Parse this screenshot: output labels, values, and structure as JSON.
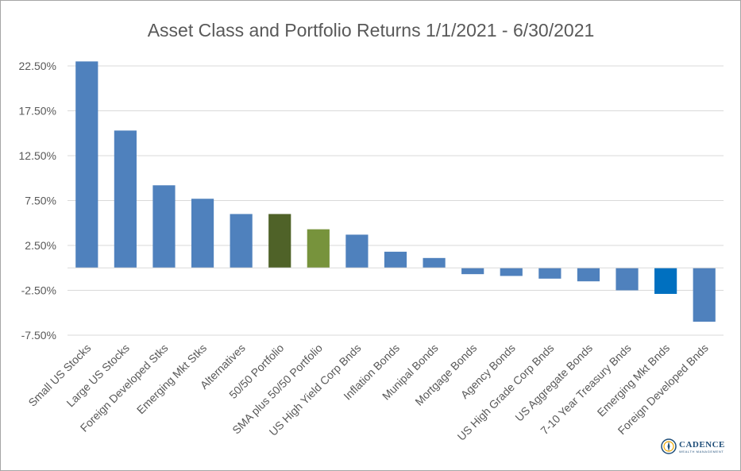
{
  "chart_data": {
    "type": "bar",
    "title": "Asset Class and Portfolio Returns 1/1/2021 - 6/30/2021",
    "xlabel": "",
    "ylabel": "",
    "ylim": [
      -7.5,
      22.5
    ],
    "yticks": [
      "22.50%",
      "17.50%",
      "12.50%",
      "7.50%",
      "2.50%",
      "-2.50%",
      "-7.50%"
    ],
    "ytick_values": [
      22.5,
      17.5,
      12.5,
      7.5,
      2.5,
      -2.5,
      -7.5
    ],
    "grid": true,
    "legend": "none",
    "categories": [
      "Small US Stocks",
      "Large US Stocks",
      "Foreign Developed Stks",
      "Emerging Mkt Stks",
      "Alternatives",
      "50/50 Portfolio",
      "SMA plus 50/50 Portfolio",
      "US High Yield Corp Bnds",
      "Inflation Bonds",
      "Munipal Bonds",
      "Mortgage Bonds",
      "Agency Bonds",
      "US High Grade Corp Bnds",
      "US Aggregate Bonds",
      "7-10 Year Treasury Bnds",
      "Emerging Mkt Bnds",
      "Foreign Developed Bnds"
    ],
    "values": [
      23.0,
      15.3,
      9.2,
      7.7,
      6.0,
      6.0,
      4.3,
      3.7,
      1.8,
      1.1,
      -0.7,
      -0.9,
      -1.2,
      -1.5,
      -2.5,
      -2.9,
      -6.0
    ],
    "colors": [
      "#4f81bd",
      "#4f81bd",
      "#4f81bd",
      "#4f81bd",
      "#4f81bd",
      "#4f6228",
      "#77933c",
      "#4f81bd",
      "#4f81bd",
      "#4f81bd",
      "#4f81bd",
      "#4f81bd",
      "#4f81bd",
      "#4f81bd",
      "#4f81bd",
      "#0070c0",
      "#4f81bd"
    ]
  },
  "logo": {
    "name": "CADENCE",
    "tagline": "WEALTH MANAGEMENT",
    "icon": "compass-logo-icon"
  },
  "style": {
    "gridline_color": "#d9d9d9",
    "axis_text_color": "#595959",
    "frame_border": "#a6a6a6"
  }
}
